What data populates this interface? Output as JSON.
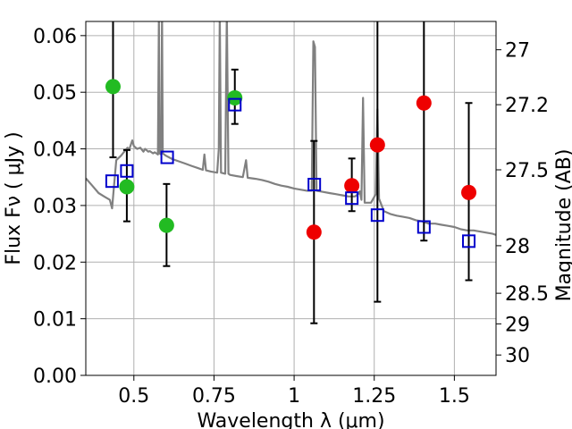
{
  "chart_data": {
    "type": "scatter",
    "title": "",
    "xlabel": "Wavelength  λ (μm)",
    "ylabel": "Flux  Fν  ( μJy )",
    "y2label": "Magnitude (AB)",
    "xlim": [
      0.35,
      1.63
    ],
    "ylim": [
      0.0,
      0.0625
    ],
    "grid": true,
    "x_ticks": [
      {
        "value": 0.5,
        "label": "0.5"
      },
      {
        "value": 0.75,
        "label": "0.75"
      },
      {
        "value": 1.0,
        "label": "1"
      },
      {
        "value": 1.25,
        "label": "1.25"
      },
      {
        "value": 1.5,
        "label": "1.5"
      }
    ],
    "y_ticks": [
      {
        "value": 0.0,
        "label": "0.00"
      },
      {
        "value": 0.01,
        "label": "0.01"
      },
      {
        "value": 0.02,
        "label": "0.02"
      },
      {
        "value": 0.03,
        "label": "0.03"
      },
      {
        "value": 0.04,
        "label": "0.04"
      },
      {
        "value": 0.05,
        "label": "0.05"
      },
      {
        "value": 0.06,
        "label": "0.06"
      }
    ],
    "y2_ticks": [
      {
        "flux": 0.0575,
        "label": "27"
      },
      {
        "flux": 0.0478,
        "label": "27.2"
      },
      {
        "flux": 0.0363,
        "label": "27.5"
      },
      {
        "flux": 0.0229,
        "label": "28"
      },
      {
        "flux": 0.0145,
        "label": "28.5"
      },
      {
        "flux": 0.0091,
        "label": "29"
      },
      {
        "flux": 0.0036,
        "label": "30"
      }
    ],
    "colors": {
      "spectrum": "#808080",
      "green_points": "#22bb22",
      "red_points": "#ee0000",
      "model_boxes": "#0000cc",
      "error_bars": "#000000",
      "grid": "#b0b0b0"
    },
    "spectrum": [
      [
        0.35,
        0.0348
      ],
      [
        0.37,
        0.0335
      ],
      [
        0.39,
        0.0322
      ],
      [
        0.41,
        0.0315
      ],
      [
        0.425,
        0.031
      ],
      [
        0.432,
        0.0295
      ],
      [
        0.438,
        0.0335
      ],
      [
        0.445,
        0.038
      ],
      [
        0.46,
        0.0388
      ],
      [
        0.47,
        0.0395
      ],
      [
        0.48,
        0.0402
      ],
      [
        0.485,
        0.0398
      ],
      [
        0.495,
        0.0415
      ],
      [
        0.5,
        0.0405
      ],
      [
        0.51,
        0.04
      ],
      [
        0.52,
        0.0402
      ],
      [
        0.53,
        0.0395
      ],
      [
        0.535,
        0.04
      ],
      [
        0.545,
        0.0395
      ],
      [
        0.55,
        0.0396
      ],
      [
        0.56,
        0.0392
      ],
      [
        0.565,
        0.0394
      ],
      [
        0.575,
        0.039
      ],
      [
        0.578,
        0.064
      ],
      [
        0.58,
        0.0392
      ],
      [
        0.585,
        0.039
      ],
      [
        0.588,
        0.064
      ],
      [
        0.59,
        0.0392
      ],
      [
        0.6,
        0.0388
      ],
      [
        0.62,
        0.0382
      ],
      [
        0.64,
        0.0378
      ],
      [
        0.66,
        0.0374
      ],
      [
        0.68,
        0.037
      ],
      [
        0.7,
        0.0366
      ],
      [
        0.715,
        0.0363
      ],
      [
        0.72,
        0.039
      ],
      [
        0.725,
        0.0362
      ],
      [
        0.74,
        0.036
      ],
      [
        0.76,
        0.0358
      ],
      [
        0.765,
        0.04
      ],
      [
        0.768,
        0.064
      ],
      [
        0.772,
        0.0358
      ],
      [
        0.785,
        0.0356
      ],
      [
        0.79,
        0.064
      ],
      [
        0.795,
        0.0356
      ],
      [
        0.8,
        0.0354
      ],
      [
        0.82,
        0.0352
      ],
      [
        0.84,
        0.035
      ],
      [
        0.85,
        0.038
      ],
      [
        0.855,
        0.0349
      ],
      [
        0.88,
        0.0347
      ],
      [
        0.9,
        0.0345
      ],
      [
        0.92,
        0.0342
      ],
      [
        0.94,
        0.0338
      ],
      [
        0.96,
        0.0335
      ],
      [
        0.98,
        0.0333
      ],
      [
        1.0,
        0.033
      ],
      [
        1.02,
        0.0328
      ],
      [
        1.04,
        0.0326
      ],
      [
        1.055,
        0.0326
      ],
      [
        1.06,
        0.059
      ],
      [
        1.065,
        0.058
      ],
      [
        1.07,
        0.0326
      ],
      [
        1.09,
        0.0324
      ],
      [
        1.11,
        0.0322
      ],
      [
        1.13,
        0.032
      ],
      [
        1.15,
        0.0318
      ],
      [
        1.17,
        0.0316
      ],
      [
        1.19,
        0.0316
      ],
      [
        1.2,
        0.032
      ],
      [
        1.205,
        0.0325
      ],
      [
        1.21,
        0.031
      ],
      [
        1.215,
        0.049
      ],
      [
        1.22,
        0.0305
      ],
      [
        1.24,
        0.0305
      ],
      [
        1.255,
        0.032
      ],
      [
        1.26,
        0.047
      ],
      [
        1.265,
        0.0312
      ],
      [
        1.28,
        0.029
      ],
      [
        1.3,
        0.0285
      ],
      [
        1.32,
        0.0282
      ],
      [
        1.34,
        0.028
      ],
      [
        1.36,
        0.0278
      ],
      [
        1.38,
        0.0274
      ],
      [
        1.4,
        0.0272
      ],
      [
        1.42,
        0.0268
      ],
      [
        1.44,
        0.0268
      ],
      [
        1.46,
        0.0266
      ],
      [
        1.48,
        0.0264
      ],
      [
        1.5,
        0.0262
      ],
      [
        1.52,
        0.0258
      ],
      [
        1.54,
        0.0256
      ],
      [
        1.56,
        0.0256
      ],
      [
        1.58,
        0.0254
      ],
      [
        1.6,
        0.0252
      ],
      [
        1.62,
        0.025
      ],
      [
        1.63,
        0.0248
      ]
    ],
    "observed_green": [
      {
        "x": 0.435,
        "y": 0.051,
        "err_lo": 0.0385,
        "err_hi": 0.0625
      },
      {
        "x": 0.478,
        "y": 0.0333,
        "err_lo": 0.0272,
        "err_hi": 0.0398
      },
      {
        "x": 0.602,
        "y": 0.0265,
        "err_lo": 0.0193,
        "err_hi": 0.0338
      },
      {
        "x": 0.815,
        "y": 0.049,
        "err_lo": 0.0444,
        "err_hi": 0.054
      }
    ],
    "observed_red": [
      {
        "x": 1.062,
        "y": 0.0253,
        "err_lo": 0.0092,
        "err_hi": 0.0414
      },
      {
        "x": 1.18,
        "y": 0.0335,
        "err_lo": 0.029,
        "err_hi": 0.0383
      },
      {
        "x": 1.26,
        "y": 0.0407,
        "err_lo": 0.013,
        "err_hi": 0.0625
      },
      {
        "x": 1.405,
        "y": 0.0481,
        "err_lo": 0.0238,
        "err_hi": 0.0625
      },
      {
        "x": 1.545,
        "y": 0.0323,
        "err_lo": 0.0168,
        "err_hi": 0.0481
      }
    ],
    "model_photometry": [
      {
        "x": 0.432,
        "y": 0.0343
      },
      {
        "x": 0.478,
        "y": 0.0361
      },
      {
        "x": 0.604,
        "y": 0.0385
      },
      {
        "x": 0.815,
        "y": 0.0478
      },
      {
        "x": 1.063,
        "y": 0.0337
      },
      {
        "x": 1.18,
        "y": 0.0313
      },
      {
        "x": 1.26,
        "y": 0.0283
      },
      {
        "x": 1.405,
        "y": 0.0262
      },
      {
        "x": 1.545,
        "y": 0.0237
      }
    ]
  }
}
